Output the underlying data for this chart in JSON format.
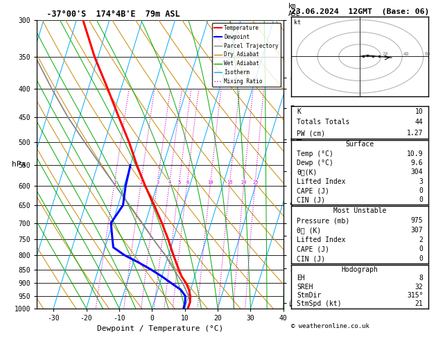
{
  "title_left": "-37°00'S  174°4B'E  79m ASL",
  "title_right": "23.06.2024  12GMT  (Base: 06)",
  "xlabel": "Dewpoint / Temperature (°C)",
  "pressure_levels": [
    300,
    350,
    400,
    450,
    500,
    550,
    600,
    650,
    700,
    750,
    800,
    850,
    900,
    950,
    1000
  ],
  "temp_min": -35,
  "temp_max": 40,
  "temp_ticks": [
    -30,
    -20,
    -10,
    0,
    10,
    20,
    30,
    40
  ],
  "km_ticks": [
    1,
    2,
    3,
    4,
    5,
    6,
    7,
    8
  ],
  "km_pressures": [
    977,
    847,
    738,
    645,
    564,
    494,
    433,
    381
  ],
  "skew": 27.0,
  "temperature_profile": {
    "pressure": [
      1000,
      975,
      950,
      925,
      900,
      875,
      850,
      825,
      800,
      775,
      750,
      700,
      650,
      600,
      550,
      500,
      450,
      400,
      350,
      300
    ],
    "temp": [
      10.9,
      11.0,
      10.5,
      9.5,
      8.0,
      6.0,
      4.5,
      3.0,
      1.5,
      0.0,
      -1.5,
      -5.0,
      -9.0,
      -13.5,
      -18.0,
      -22.5,
      -28.0,
      -34.0,
      -41.0,
      -48.0
    ],
    "color": "#ff0000",
    "linewidth": 2.2
  },
  "dewpoint_profile": {
    "pressure": [
      1000,
      975,
      950,
      925,
      900,
      875,
      850,
      825,
      800,
      775,
      750,
      700,
      650,
      600,
      550
    ],
    "temp": [
      9.6,
      9.5,
      9.0,
      7.0,
      3.5,
      0.0,
      -4.0,
      -8.5,
      -13.5,
      -17.5,
      -18.5,
      -20.5,
      -18.5,
      -19.5,
      -20.0
    ],
    "color": "#0000ff",
    "linewidth": 2.2
  },
  "parcel_profile": {
    "pressure": [
      975,
      950,
      925,
      900,
      875,
      850,
      825,
      800,
      775,
      750,
      700,
      650,
      600,
      550,
      500,
      450,
      400,
      350,
      300
    ],
    "temp": [
      11.0,
      10.0,
      8.5,
      7.0,
      5.0,
      3.0,
      1.0,
      -1.0,
      -3.5,
      -6.0,
      -11.0,
      -16.5,
      -22.5,
      -29.0,
      -36.0,
      -43.5,
      -51.0,
      -59.0,
      -67.0
    ],
    "color": "#888888",
    "linewidth": 1.3
  },
  "isotherm_color": "#00aaff",
  "dry_adiabat_color": "#cc8800",
  "wet_adiabat_color": "#00aa00",
  "mixing_ratio_color": "#cc00cc",
  "info_panel": {
    "K": "10",
    "Totals_Totals": "44",
    "PW_cm": "1.27",
    "Surface_Temp": "10.9",
    "Surface_Dewp": "9.6",
    "Surface_theta_e": "304",
    "Surface_LI": "3",
    "Surface_CAPE": "0",
    "Surface_CIN": "0",
    "MU_Pressure": "975",
    "MU_theta_e": "307",
    "MU_LI": "2",
    "MU_CAPE": "0",
    "MU_CIN": "0",
    "EH": "8",
    "SREH": "32",
    "StmDir": "315°",
    "StmSpd": "21"
  }
}
